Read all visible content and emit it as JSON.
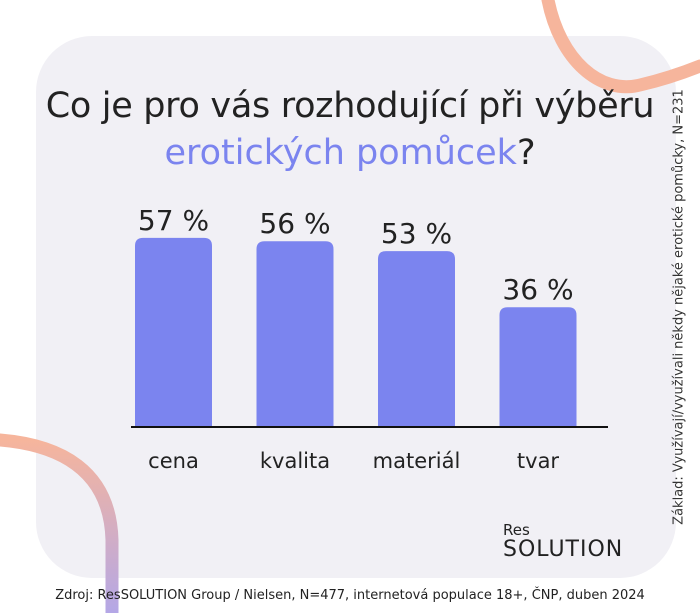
{
  "title": {
    "part1": "Co  je pro vás rozhodující při výběru",
    "accent": "erotických pomůcek",
    "end": "?"
  },
  "side_note": "Základ: Využívají/využívali někdy nějaké erotické pomůcky, N=231",
  "logo": {
    "small": "Res",
    "big": "SOLUTION"
  },
  "footer": "Zdroj: ResSOLUTION Group / Nielsen, N=477, internetová populace 18+, ČNP, duben 2024",
  "colors": {
    "bar": "#7b84ef",
    "accent": "#7b84ef",
    "card": "#f1f0f5",
    "deco_pink": "#f6b59c",
    "deco_purple": "#b4a7e6"
  },
  "chart_data": {
    "type": "bar",
    "categories": [
      "cena",
      "kvalita",
      "materiál",
      "tvar"
    ],
    "values": [
      57,
      56,
      53,
      36
    ],
    "value_labels": [
      "57 %",
      "56 %",
      "53 %",
      "36 %"
    ],
    "unit": "%",
    "ylim": [
      0,
      60
    ],
    "grid": false
  }
}
